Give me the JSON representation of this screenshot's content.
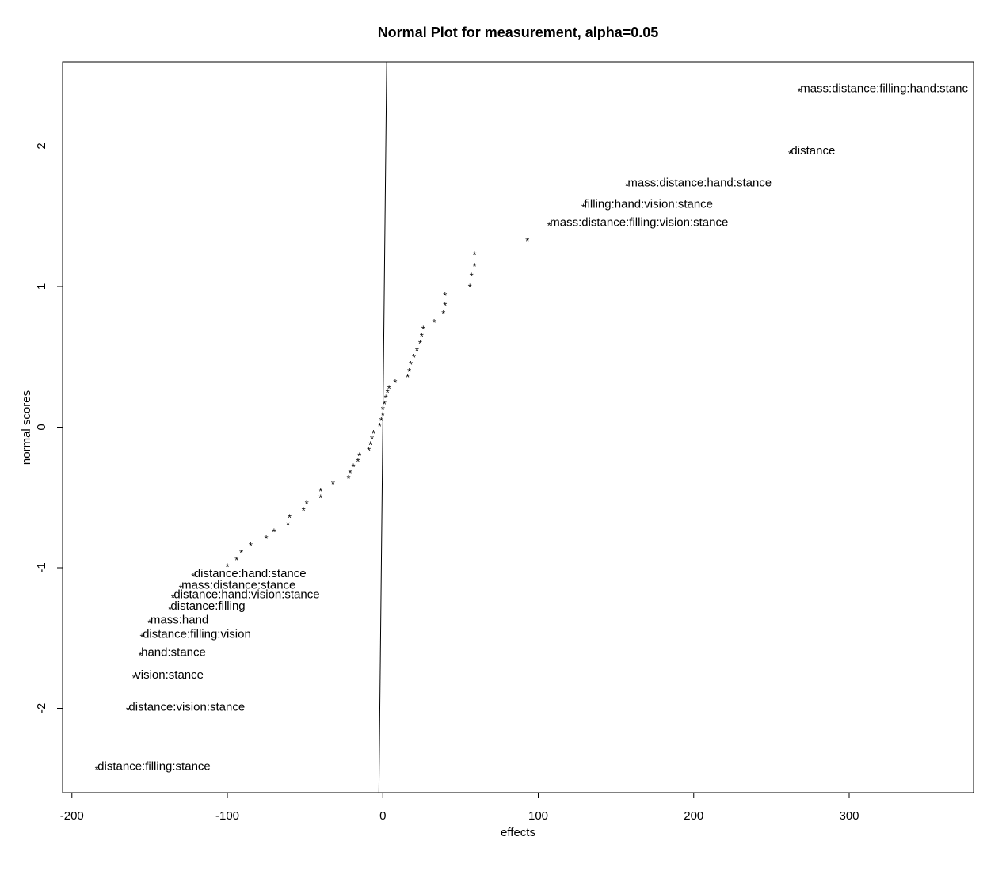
{
  "chart_data": {
    "type": "scatter",
    "title": "Normal Plot for measurement, alpha=0.05",
    "xlabel": "effects",
    "ylabel": "normal scores",
    "xlim": [
      -206,
      380
    ],
    "ylim": [
      -2.6,
      2.6
    ],
    "x_ticks": [
      -200,
      -100,
      0,
      100,
      200,
      300
    ],
    "x_tick_labels": [
      "-200",
      "-100",
      "0",
      "100",
      "200",
      "300"
    ],
    "y_ticks": [
      -2,
      -1,
      0,
      1,
      2
    ],
    "y_tick_labels": [
      "-2",
      "-1",
      "0",
      "1",
      "2"
    ],
    "marker": "*",
    "grid": false,
    "reference_line": {
      "x": [
        -2.5,
        2.5
      ],
      "y": [
        -2.6,
        2.6
      ]
    },
    "labeled_points": [
      {
        "x": 268,
        "y": 2.41,
        "label": "mass:distance:filling:hand:stanc"
      },
      {
        "x": 262,
        "y": 1.97,
        "label": "distance"
      },
      {
        "x": 157,
        "y": 1.74,
        "label": "mass:distance:hand:stance"
      },
      {
        "x": 129,
        "y": 1.59,
        "label": "filling:hand:vision:stance"
      },
      {
        "x": 107,
        "y": 1.46,
        "label": "mass:distance:filling:vision:stance"
      },
      {
        "x": -122,
        "y": -1.04,
        "label": "distance:hand:stance"
      },
      {
        "x": -130,
        "y": -1.12,
        "label": "mass:distance:stance"
      },
      {
        "x": -135,
        "y": -1.19,
        "label": "distance:hand:vision:stance"
      },
      {
        "x": -137,
        "y": -1.27,
        "label": "distance:filling"
      },
      {
        "x": -150,
        "y": -1.37,
        "label": "mass:hand"
      },
      {
        "x": -155,
        "y": -1.47,
        "label": "distance:filling:vision"
      },
      {
        "x": -156,
        "y": -1.6,
        "label": "hand:stance"
      },
      {
        "x": -160,
        "y": -1.76,
        "label": "vision:stance"
      },
      {
        "x": -164,
        "y": -1.99,
        "label": "distance:vision:stance"
      },
      {
        "x": -184,
        "y": -2.41,
        "label": "distance:filling:stance"
      }
    ],
    "unlabeled_points": [
      {
        "x": 93,
        "y": 1.35
      },
      {
        "x": 59,
        "y": 1.25
      },
      {
        "x": 59,
        "y": 1.17
      },
      {
        "x": 57,
        "y": 1.1
      },
      {
        "x": 56,
        "y": 1.02
      },
      {
        "x": 40,
        "y": 0.96
      },
      {
        "x": 40,
        "y": 0.89
      },
      {
        "x": 39,
        "y": 0.83
      },
      {
        "x": 33,
        "y": 0.77
      },
      {
        "x": 26,
        "y": 0.72
      },
      {
        "x": 25,
        "y": 0.67
      },
      {
        "x": 24,
        "y": 0.62
      },
      {
        "x": 22,
        "y": 0.57
      },
      {
        "x": 20,
        "y": 0.52
      },
      {
        "x": 18,
        "y": 0.47
      },
      {
        "x": 17,
        "y": 0.42
      },
      {
        "x": 16,
        "y": 0.38
      },
      {
        "x": 8,
        "y": 0.34
      },
      {
        "x": 4,
        "y": 0.3
      },
      {
        "x": 3,
        "y": 0.27
      },
      {
        "x": 2,
        "y": 0.23
      },
      {
        "x": 1,
        "y": 0.19
      },
      {
        "x": 0,
        "y": 0.15
      },
      {
        "x": 0,
        "y": 0.11
      },
      {
        "x": -1,
        "y": 0.07
      },
      {
        "x": -2,
        "y": 0.03
      },
      {
        "x": -6,
        "y": -0.02
      },
      {
        "x": -7,
        "y": -0.06
      },
      {
        "x": -8,
        "y": -0.1
      },
      {
        "x": -9,
        "y": -0.14
      },
      {
        "x": -15,
        "y": -0.18
      },
      {
        "x": -16,
        "y": -0.22
      },
      {
        "x": -19,
        "y": -0.26
      },
      {
        "x": -21,
        "y": -0.3
      },
      {
        "x": -22,
        "y": -0.34
      },
      {
        "x": -32,
        "y": -0.38
      },
      {
        "x": -40,
        "y": -0.43
      },
      {
        "x": -40,
        "y": -0.48
      },
      {
        "x": -49,
        "y": -0.52
      },
      {
        "x": -51,
        "y": -0.57
      },
      {
        "x": -60,
        "y": -0.62
      },
      {
        "x": -61,
        "y": -0.67
      },
      {
        "x": -70,
        "y": -0.72
      },
      {
        "x": -75,
        "y": -0.77
      },
      {
        "x": -85,
        "y": -0.82
      },
      {
        "x": -91,
        "y": -0.87
      },
      {
        "x": -94,
        "y": -0.92
      },
      {
        "x": -100,
        "y": -0.97
      }
    ]
  }
}
